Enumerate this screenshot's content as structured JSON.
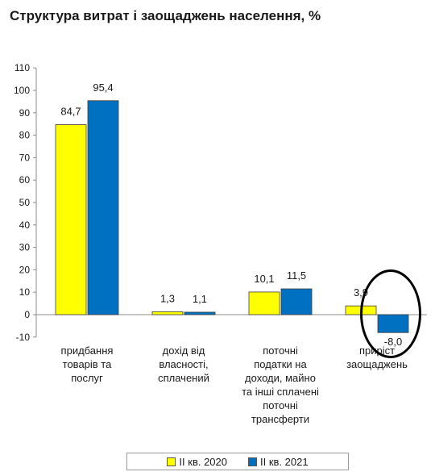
{
  "chart_data": {
    "type": "bar",
    "title": "Структура витрат і заощаджень населення, %",
    "categories": [
      [
        "придбання",
        "товарів та",
        "послуг"
      ],
      [
        "дохід від",
        "власності,",
        "сплачений"
      ],
      [
        "поточні",
        "податки на",
        "доходи, майно",
        "та інші сплачені",
        "поточні",
        "трансферти"
      ],
      [
        "приріст",
        "заощаджень"
      ]
    ],
    "series": [
      {
        "name": "II кв. 2020",
        "color": "#FFFF00",
        "values": [
          84.7,
          1.3,
          10.1,
          3.9
        ],
        "labels": [
          "84,7",
          "1,3",
          "10,1",
          "3,9"
        ]
      },
      {
        "name": "II кв. 2021",
        "color": "#0070C0",
        "values": [
          95.4,
          1.1,
          11.5,
          -8.0
        ],
        "labels": [
          "95,4",
          "1,1",
          "11,5",
          "-8,0"
        ]
      }
    ],
    "y_ticks": [
      "-10",
      "0",
      "10",
      "20",
      "30",
      "40",
      "50",
      "60",
      "70",
      "80",
      "90",
      "100",
      "110"
    ],
    "ylim": [
      -10,
      110
    ],
    "grid": false,
    "legend_position": "bottom"
  }
}
